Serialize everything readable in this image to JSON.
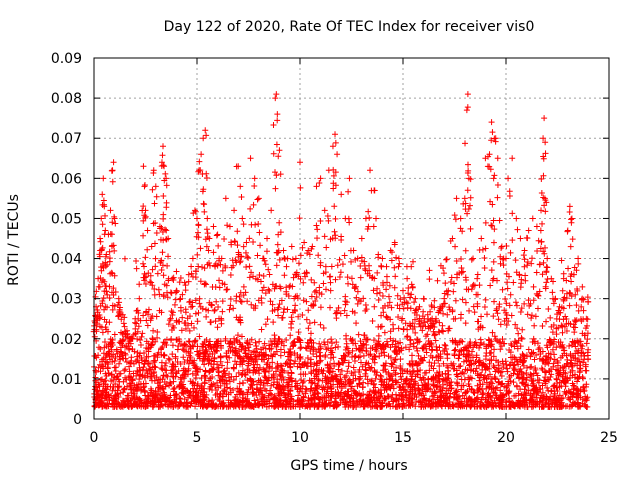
{
  "chart_data": {
    "type": "scatter",
    "title": "Day 122 of 2020, Rate Of TEC Index for receiver vis0",
    "xlabel": "GPS time / hours",
    "ylabel": "ROTI / TECUs",
    "xlim": [
      0,
      25
    ],
    "ylim": [
      0,
      0.09
    ],
    "xticks": [
      0,
      5,
      10,
      15,
      20,
      25
    ],
    "yticks": [
      0,
      0.01,
      0.02,
      0.03,
      0.04,
      0.05,
      0.06,
      0.07,
      0.08,
      0.09
    ],
    "xtick_labels": [
      "0",
      "5",
      "10",
      "15",
      "20",
      "25"
    ],
    "ytick_labels": [
      "0",
      "0.01",
      "0.02",
      "0.03",
      "0.04",
      "0.05",
      "0.06",
      "0.07",
      "0.08",
      "0.09"
    ],
    "grid": true,
    "marker": "+",
    "color": "#ff0000",
    "series": [
      {
        "name": "ROTI",
        "points": [
          [
            0.05,
            0.024
          ],
          [
            0.1,
            0.028
          ],
          [
            0.2,
            0.035
          ],
          [
            0.3,
            0.042
          ],
          [
            0.35,
            0.05
          ],
          [
            0.4,
            0.056
          ],
          [
            0.45,
            0.06
          ],
          [
            0.5,
            0.053
          ],
          [
            0.55,
            0.047
          ],
          [
            0.6,
            0.041
          ],
          [
            0.7,
            0.046
          ],
          [
            0.8,
            0.052
          ],
          [
            0.9,
            0.062
          ],
          [
            0.95,
            0.064
          ],
          [
            1.0,
            0.05
          ],
          [
            1.2,
            0.03
          ],
          [
            1.4,
            0.026
          ],
          [
            1.6,
            0.022
          ],
          [
            1.8,
            0.02
          ],
          [
            2.0,
            0.025
          ],
          [
            2.2,
            0.03
          ],
          [
            2.4,
            0.063
          ],
          [
            2.45,
            0.058
          ],
          [
            2.5,
            0.052
          ],
          [
            2.6,
            0.047
          ],
          [
            2.8,
            0.043
          ],
          [
            2.9,
            0.062
          ],
          [
            3.0,
            0.058
          ],
          [
            3.2,
            0.048
          ],
          [
            3.3,
            0.064
          ],
          [
            3.35,
            0.068
          ],
          [
            3.4,
            0.063
          ],
          [
            3.5,
            0.06
          ],
          [
            3.6,
            0.045
          ],
          [
            3.8,
            0.035
          ],
          [
            4.0,
            0.032
          ],
          [
            4.2,
            0.03
          ],
          [
            4.4,
            0.034
          ],
          [
            4.6,
            0.036
          ],
          [
            4.8,
            0.04
          ],
          [
            4.9,
            0.052
          ],
          [
            5.0,
            0.05
          ],
          [
            5.1,
            0.062
          ],
          [
            5.2,
            0.066
          ],
          [
            5.3,
            0.07
          ],
          [
            5.4,
            0.072
          ],
          [
            5.5,
            0.05
          ],
          [
            5.6,
            0.045
          ],
          [
            5.8,
            0.048
          ],
          [
            6.0,
            0.046
          ],
          [
            6.2,
            0.04
          ],
          [
            6.4,
            0.055
          ],
          [
            6.6,
            0.048
          ],
          [
            6.8,
            0.052
          ],
          [
            7.0,
            0.063
          ],
          [
            7.1,
            0.058
          ],
          [
            7.2,
            0.05
          ],
          [
            7.4,
            0.044
          ],
          [
            7.6,
            0.065
          ],
          [
            7.8,
            0.06
          ],
          [
            8.0,
            0.055
          ],
          [
            8.2,
            0.04
          ],
          [
            8.4,
            0.045
          ],
          [
            8.6,
            0.052
          ],
          [
            8.8,
            0.08
          ],
          [
            8.85,
            0.081
          ],
          [
            8.9,
            0.076
          ],
          [
            9.0,
            0.067
          ],
          [
            9.2,
            0.042
          ],
          [
            9.4,
            0.04
          ],
          [
            9.6,
            0.043
          ],
          [
            9.8,
            0.04
          ],
          [
            10.0,
            0.064
          ],
          [
            10.2,
            0.044
          ],
          [
            10.4,
            0.042
          ],
          [
            10.6,
            0.043
          ],
          [
            10.8,
            0.058
          ],
          [
            11.0,
            0.06
          ],
          [
            11.2,
            0.052
          ],
          [
            11.4,
            0.062
          ],
          [
            11.6,
            0.068
          ],
          [
            11.7,
            0.071
          ],
          [
            11.8,
            0.066
          ],
          [
            12.0,
            0.056
          ],
          [
            12.2,
            0.05
          ],
          [
            12.4,
            0.06
          ],
          [
            12.6,
            0.042
          ],
          [
            12.8,
            0.04
          ],
          [
            13.0,
            0.045
          ],
          [
            13.2,
            0.05
          ],
          [
            13.4,
            0.062
          ],
          [
            13.6,
            0.057
          ],
          [
            13.8,
            0.041
          ],
          [
            14.0,
            0.04
          ],
          [
            14.2,
            0.038
          ],
          [
            14.4,
            0.042
          ],
          [
            14.6,
            0.044
          ],
          [
            14.8,
            0.04
          ],
          [
            15.0,
            0.032
          ],
          [
            15.2,
            0.035
          ],
          [
            15.4,
            0.038
          ],
          [
            15.6,
            0.03
          ],
          [
            15.8,
            0.028
          ],
          [
            16.0,
            0.03
          ],
          [
            16.2,
            0.026
          ],
          [
            16.4,
            0.028
          ],
          [
            16.6,
            0.025
          ],
          [
            16.8,
            0.028
          ],
          [
            17.0,
            0.03
          ],
          [
            17.2,
            0.032
          ],
          [
            17.4,
            0.045
          ],
          [
            17.6,
            0.055
          ],
          [
            17.8,
            0.05
          ],
          [
            18.0,
            0.055
          ],
          [
            18.1,
            0.077
          ],
          [
            18.15,
            0.081
          ],
          [
            18.2,
            0.06
          ],
          [
            18.4,
            0.04
          ],
          [
            18.6,
            0.035
          ],
          [
            18.8,
            0.045
          ],
          [
            19.0,
            0.065
          ],
          [
            19.2,
            0.066
          ],
          [
            19.3,
            0.074
          ],
          [
            19.4,
            0.06
          ],
          [
            19.5,
            0.07
          ],
          [
            19.6,
            0.065
          ],
          [
            19.8,
            0.043
          ],
          [
            20.0,
            0.04
          ],
          [
            20.1,
            0.06
          ],
          [
            20.3,
            0.065
          ],
          [
            20.5,
            0.05
          ],
          [
            20.7,
            0.045
          ],
          [
            20.9,
            0.042
          ],
          [
            21.1,
            0.047
          ],
          [
            21.3,
            0.05
          ],
          [
            21.5,
            0.048
          ],
          [
            21.7,
            0.052
          ],
          [
            21.8,
            0.07
          ],
          [
            21.85,
            0.075
          ],
          [
            21.9,
            0.069
          ],
          [
            22.0,
            0.04
          ],
          [
            22.2,
            0.035
          ],
          [
            22.4,
            0.03
          ],
          [
            22.6,
            0.028
          ],
          [
            22.8,
            0.035
          ],
          [
            23.0,
            0.047
          ],
          [
            23.1,
            0.053
          ],
          [
            23.2,
            0.05
          ],
          [
            23.3,
            0.036
          ],
          [
            23.5,
            0.04
          ],
          [
            23.7,
            0.03
          ],
          [
            23.9,
            0.025
          ]
        ]
      }
    ],
    "dense_band": {
      "x_range": [
        0,
        24
      ],
      "y_min": 0.003,
      "y_max_typical": 0.02,
      "y_max_bursts": 0.04,
      "point_count": 3600
    }
  }
}
